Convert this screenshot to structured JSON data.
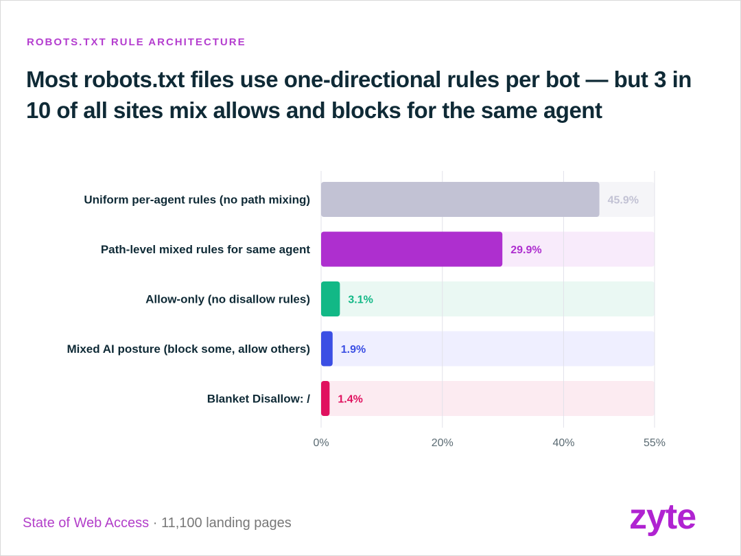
{
  "eyebrow": "ROBOTS.TXT RULE ARCHITECTURE",
  "headline": "Most robots.txt files use one-directional rules per bot — but 3 in 10 of all sites mix allows and blocks for the same agent",
  "footer": {
    "source": "State of Web Access",
    "separator": " · ",
    "detail": "11,100 landing pages"
  },
  "logo": "zyte",
  "chart_data": {
    "type": "bar",
    "orientation": "horizontal",
    "categories": [
      "Uniform per-agent rules (no path mixing)",
      "Path-level mixed rules for same agent",
      "Allow-only (no disallow rules)",
      "Mixed AI posture (block some, allow others)",
      "Blanket Disallow: /"
    ],
    "values": [
      45.9,
      29.9,
      3.1,
      1.9,
      1.4
    ],
    "value_labels": [
      "45.9%",
      "29.9%",
      "3.1%",
      "1.9%",
      "1.4%"
    ],
    "colors": [
      "#c2c2d4",
      "#ae2fcf",
      "#12b886",
      "#3b4fe4",
      "#e0115f"
    ],
    "track_colors": [
      "#f5f5f8",
      "#f8ebfb",
      "#eaf8f3",
      "#efefff",
      "#fcebf1"
    ],
    "label_colors": [
      "#c2c2d4",
      "#ae2fcf",
      "#12b886",
      "#3b4fe4",
      "#e0115f"
    ],
    "xlim": [
      0,
      55
    ],
    "xticks": [
      0,
      20,
      40,
      55
    ],
    "xtick_labels": [
      "0%",
      "20%",
      "40%",
      "55%"
    ],
    "grid": true
  }
}
